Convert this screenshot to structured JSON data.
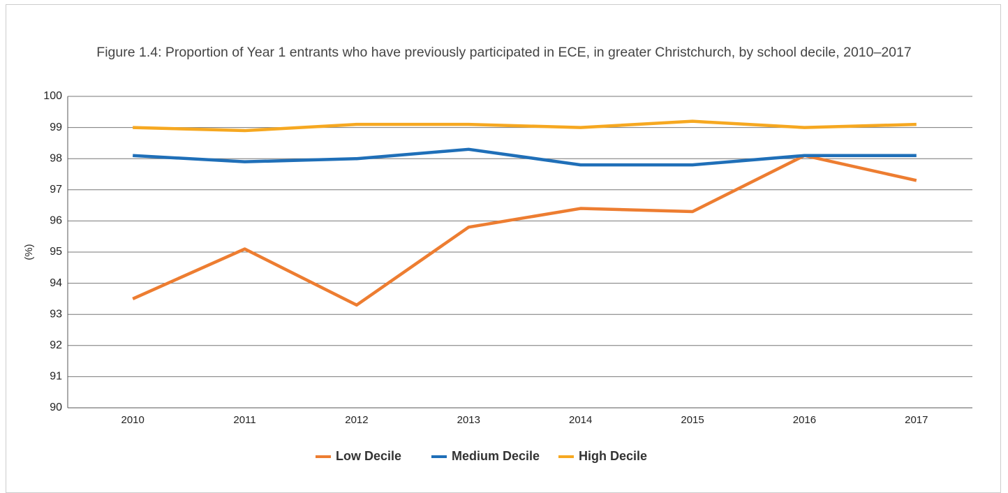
{
  "chart_data": {
    "type": "line",
    "title": "Figure 1.4: Proportion of Year 1 entrants who have previously participated in ECE, in greater Christchurch, by school decile, 2010–2017",
    "y_label": "(%)",
    "categories": [
      "2010",
      "2011",
      "2012",
      "2013",
      "2014",
      "2015",
      "2016",
      "2017"
    ],
    "series": [
      {
        "name": "Low Decile",
        "color": "#ed7d31",
        "values": [
          93.5,
          95.1,
          93.3,
          95.8,
          96.4,
          96.3,
          98.1,
          97.3
        ]
      },
      {
        "name": "Medium Decile",
        "color": "#1f6fb8",
        "values": [
          98.1,
          97.9,
          98.0,
          98.3,
          97.8,
          97.8,
          98.1,
          98.1
        ]
      },
      {
        "name": "High Decile",
        "color": "#f6a821",
        "values": [
          99.0,
          98.9,
          99.1,
          99.1,
          99.0,
          99.2,
          99.0,
          99.1
        ]
      }
    ],
    "ylim": [
      90,
      100
    ],
    "yticks": [
      90,
      91,
      92,
      93,
      94,
      95,
      96,
      97,
      98,
      99,
      100
    ],
    "grid": true,
    "legend": "bottom"
  }
}
